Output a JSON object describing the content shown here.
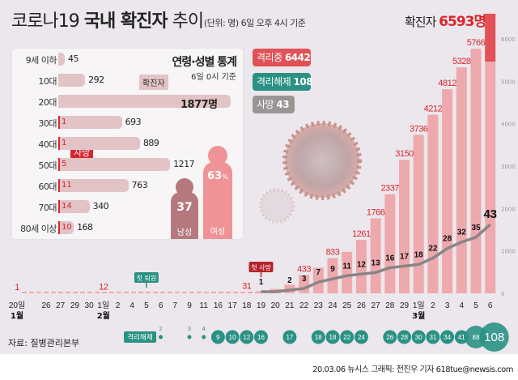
{
  "header": {
    "title_light": "코로나19 ",
    "title_bold": "국내 확진자",
    "title_tail": " 추이",
    "unit_note": "(단위: 명) 6일 오후 4시 기준",
    "total_label": "확진자 ",
    "total_value": "6593명"
  },
  "legend": [
    {
      "label": "격리중",
      "value": "6442",
      "color": "#e05257"
    },
    {
      "label": "격리해제",
      "value": "108",
      "color": "#2a9184"
    },
    {
      "label": "사망",
      "value": "43",
      "color": "#9a9494"
    }
  ],
  "age_panel": {
    "title": "연령·성별 통계",
    "subtitle": "6일 0시 기준",
    "confirmed_tag": "확진자",
    "death_tag": "사망",
    "rows": [
      {
        "label": "9세 이하",
        "confirmed": 45,
        "confirmed_text": "45",
        "deaths": null
      },
      {
        "label": "10대",
        "confirmed": 292,
        "confirmed_text": "292",
        "deaths": null
      },
      {
        "label": "20대",
        "confirmed": 1877,
        "confirmed_text": "1877명",
        "deaths": null
      },
      {
        "label": "30대",
        "confirmed": 693,
        "confirmed_text": "693",
        "deaths": "1"
      },
      {
        "label": "40대",
        "confirmed": 889,
        "confirmed_text": "889",
        "deaths": "1"
      },
      {
        "label": "50대",
        "confirmed": 1217,
        "confirmed_text": "1217",
        "deaths": "5"
      },
      {
        "label": "60대",
        "confirmed": 763,
        "confirmed_text": "763",
        "deaths": "11"
      },
      {
        "label": "70대",
        "confirmed": 340,
        "confirmed_text": "340",
        "deaths": "14"
      },
      {
        "label": "80세 이상",
        "confirmed": 168,
        "confirmed_text": "168",
        "deaths": "10"
      }
    ],
    "gender": {
      "male": {
        "label": "남성",
        "value": "37",
        "color": "#b5797d"
      },
      "female": {
        "label": "여성",
        "value": "63",
        "unit": "%",
        "color": "#ef9397"
      }
    }
  },
  "chart_data": {
    "type": "bar",
    "y_axis": {
      "range": [
        0,
        6593
      ],
      "ticks": [
        "0",
        "1000",
        "2000",
        "3000",
        "4000",
        "5000",
        "6000"
      ]
    },
    "x_ticks": [
      "20일",
      "26",
      "27",
      "29",
      "30",
      "1일",
      "2",
      "4",
      "5",
      "6",
      "7",
      "9",
      "11",
      "16",
      "17",
      "18",
      "19",
      "20",
      "21",
      "22",
      "23",
      "24",
      "25",
      "26",
      "27",
      "28",
      "29",
      "1일",
      "2",
      "3",
      "4",
      "5",
      "6"
    ],
    "months": [
      {
        "label": "1월",
        "at": 0
      },
      {
        "label": "2월",
        "at": 5
      },
      {
        "label": "3월",
        "at": 27
      }
    ],
    "confirmed": [
      1,
      null,
      null,
      null,
      null,
      12,
      null,
      null,
      null,
      null,
      null,
      null,
      null,
      null,
      null,
      31,
      51,
      104,
      204,
      433,
      602,
      833,
      977,
      1261,
      1766,
      2337,
      3150,
      3736,
      4212,
      4812,
      5328,
      5766,
      6593
    ],
    "confirmed_labels": [
      "1",
      "",
      "",
      "",
      "",
      "12",
      "",
      "",
      "",
      "",
      "",
      "",
      "",
      "",
      "",
      "31",
      "",
      "",
      "",
      "433",
      "",
      "833",
      "",
      "1261",
      "1766",
      "2337",
      "3150",
      "3736",
      "4212",
      "4812",
      "5328",
      "5766",
      ""
    ],
    "deaths": [
      null,
      null,
      null,
      null,
      null,
      null,
      null,
      null,
      null,
      null,
      null,
      null,
      null,
      null,
      null,
      null,
      1,
      1,
      2,
      3,
      7,
      9,
      11,
      12,
      13,
      16,
      17,
      18,
      22,
      28,
      32,
      35,
      43
    ],
    "death_labels": [
      "",
      "",
      "",
      "",
      "",
      "",
      "",
      "",
      "",
      "",
      "",
      "",
      "",
      "",
      "",
      "",
      "1",
      "",
      "2",
      "3",
      "7",
      "9",
      "11",
      "12",
      "13",
      "16",
      "17",
      "18",
      "22",
      "28",
      "32",
      "35",
      "43"
    ],
    "released": [
      null,
      null,
      null,
      null,
      null,
      null,
      null,
      null,
      null,
      2,
      null,
      3,
      4,
      9,
      10,
      12,
      16,
      null,
      17,
      null,
      18,
      18,
      22,
      24,
      null,
      26,
      28,
      30,
      31,
      34,
      41,
      88,
      108
    ],
    "released_label": "격리해제",
    "annotations": [
      {
        "label": "첫 퇴원",
        "at": 8
      },
      {
        "label": "첫 사망",
        "at": 16
      }
    ],
    "colors": {
      "bar": "#eea9ad",
      "bar_top": "#e05257",
      "death_line": "#8a8585",
      "released": "#2a9184",
      "confirmed_text": "#d9252d"
    }
  },
  "footer": {
    "source": "자료: 질병관리본부",
    "credit": "20.03.06 뉴시스 그래픽: 전진우 기자 618tue@newsis.com"
  }
}
